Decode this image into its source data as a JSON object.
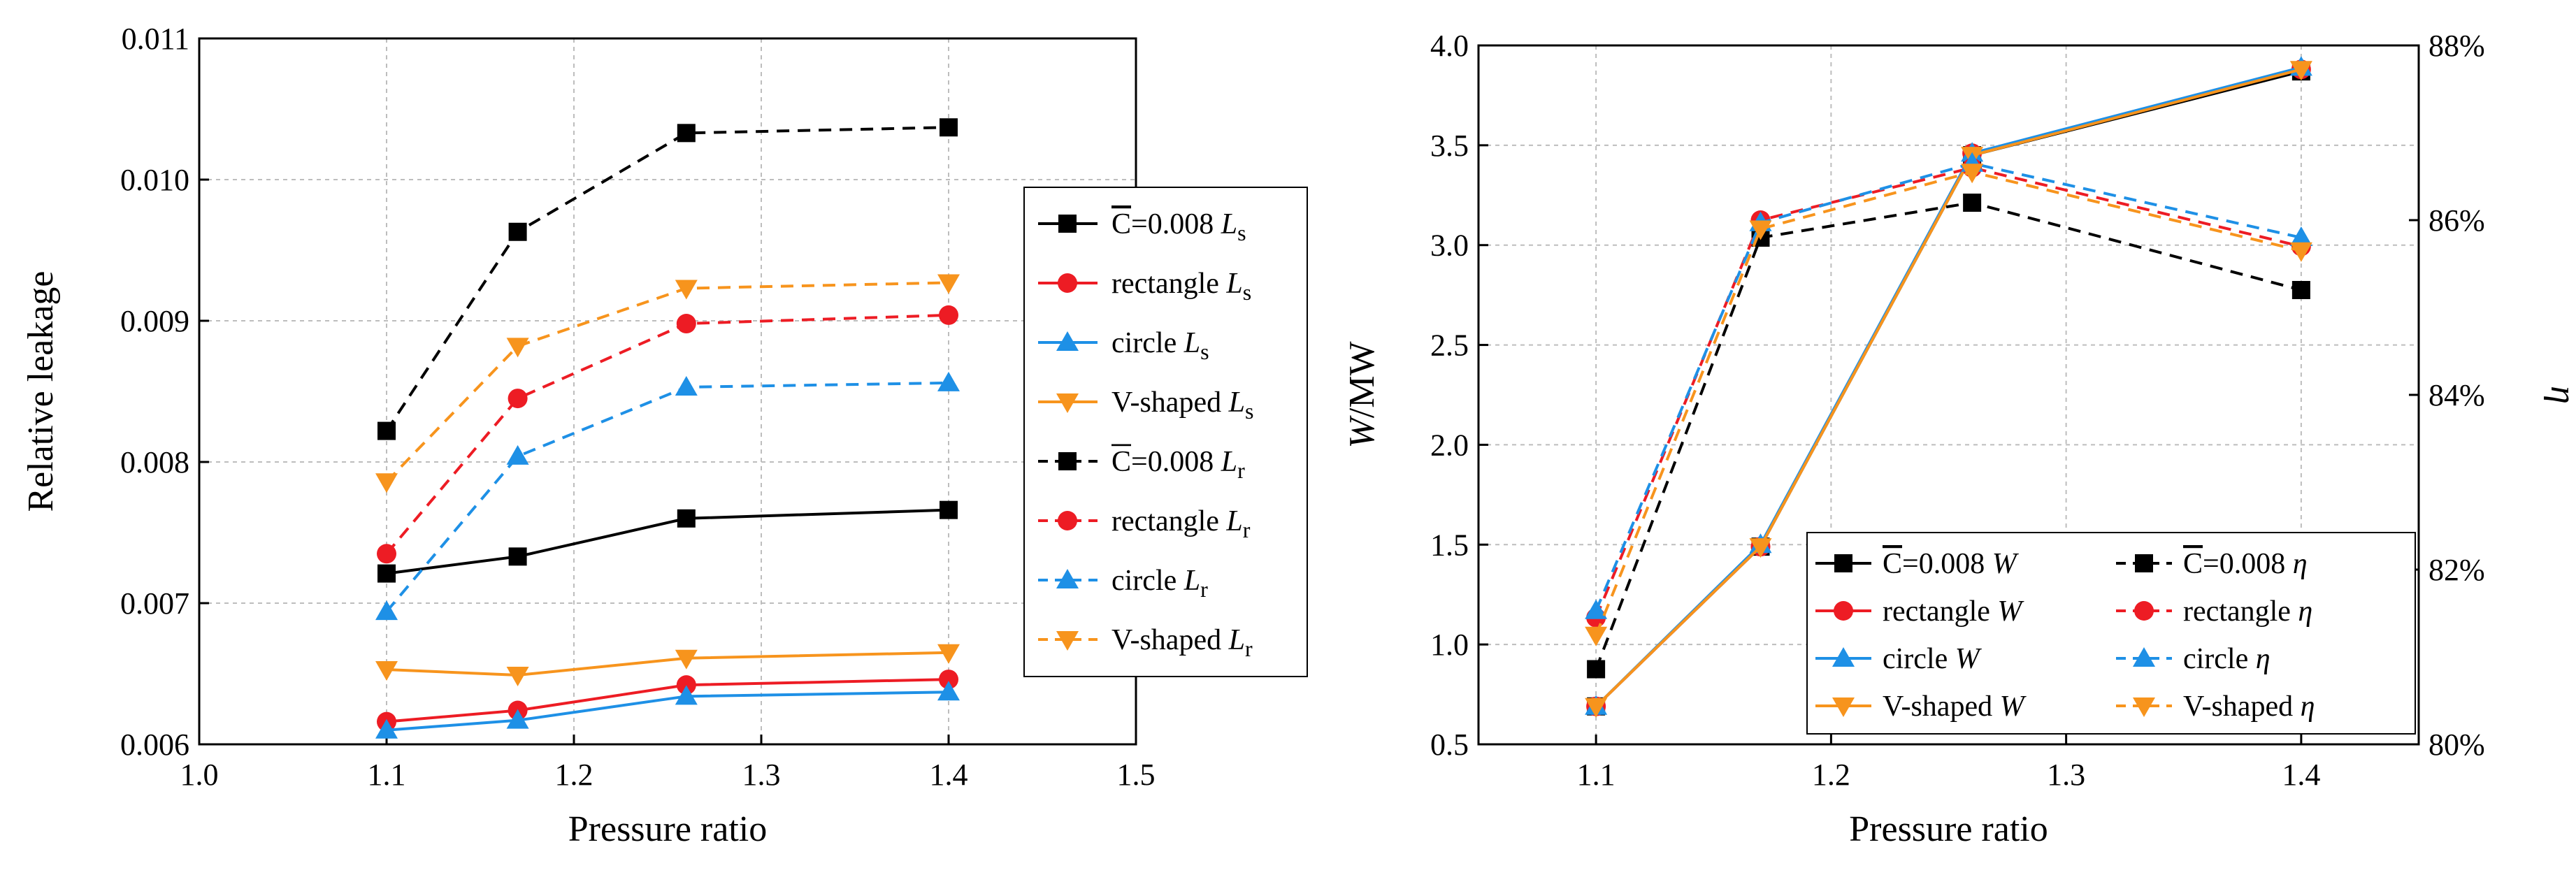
{
  "colors": {
    "baseline": "#000000",
    "rectangle": "#ed1c24",
    "circle": "#1e90e6",
    "vshaped": "#f7941d"
  },
  "chart_data": [
    {
      "type": "line",
      "xlabel": "Pressure ratio",
      "ylabel": "Relative leakage",
      "xlim": [
        1.0,
        1.5
      ],
      "ylim": [
        0.006,
        0.011
      ],
      "xticks": [
        1.0,
        1.1,
        1.2,
        1.3,
        1.4,
        1.5
      ],
      "xtick_labels": [
        "1.0",
        "1.1",
        "1.2",
        "1.3",
        "1.4",
        "1.5"
      ],
      "yticks": [
        0.006,
        0.007,
        0.008,
        0.009,
        0.01,
        0.011
      ],
      "ytick_labels": [
        "0.006",
        "0.007",
        "0.008",
        "0.009",
        "0.010",
        "0.011"
      ],
      "grid": true,
      "legend_position": "right-middle",
      "x": [
        1.1,
        1.17,
        1.26,
        1.4
      ],
      "series": [
        {
          "key": "base_Ls",
          "pre": "",
          "bar": "C",
          "post": "=0.008 ",
          "sym": "L",
          "sub": "s",
          "colorKey": "baseline",
          "marker": "square",
          "dashed": false,
          "values": [
            0.00721,
            0.00733,
            0.0076,
            0.00766
          ]
        },
        {
          "key": "rect_Ls",
          "pre": "rectangle ",
          "bar": "",
          "post": "",
          "sym": "L",
          "sub": "s",
          "colorKey": "rectangle",
          "marker": "circle",
          "dashed": false,
          "values": [
            0.00616,
            0.00624,
            0.00642,
            0.00646
          ]
        },
        {
          "key": "circ_Ls",
          "pre": "circle ",
          "bar": "",
          "post": "",
          "sym": "L",
          "sub": "s",
          "colorKey": "circle",
          "marker": "triangle-up",
          "dashed": false,
          "values": [
            0.0061,
            0.00617,
            0.00634,
            0.00637
          ]
        },
        {
          "key": "v_Ls",
          "pre": "V-shaped ",
          "bar": "",
          "post": "",
          "sym": "L",
          "sub": "s",
          "colorKey": "vshaped",
          "marker": "triangle-down",
          "dashed": false,
          "values": [
            0.00653,
            0.00649,
            0.00661,
            0.00665
          ]
        },
        {
          "key": "base_Lr",
          "pre": "",
          "bar": "C",
          "post": "=0.008 ",
          "sym": "L",
          "sub": "r",
          "colorKey": "baseline",
          "marker": "square",
          "dashed": true,
          "values": [
            0.00822,
            0.00963,
            0.01033,
            0.01037
          ]
        },
        {
          "key": "rect_Lr",
          "pre": "rectangle ",
          "bar": "",
          "post": "",
          "sym": "L",
          "sub": "r",
          "colorKey": "rectangle",
          "marker": "circle",
          "dashed": true,
          "values": [
            0.00735,
            0.00845,
            0.00898,
            0.00904
          ]
        },
        {
          "key": "circ_Lr",
          "pre": "circle ",
          "bar": "",
          "post": "",
          "sym": "L",
          "sub": "r",
          "colorKey": "circle",
          "marker": "triangle-up",
          "dashed": true,
          "values": [
            0.00694,
            0.00804,
            0.00853,
            0.00856
          ]
        },
        {
          "key": "v_Lr",
          "pre": "V-shaped ",
          "bar": "",
          "post": "",
          "sym": "L",
          "sub": "r",
          "colorKey": "vshaped",
          "marker": "triangle-down",
          "dashed": true,
          "values": [
            0.00786,
            0.00882,
            0.00923,
            0.00927
          ]
        }
      ]
    },
    {
      "type": "line",
      "xlabel": "Pressure ratio",
      "ylabel_sym": "W",
      "ylabel_unit": "/MW",
      "y2label": "η",
      "xlim": [
        1.05,
        1.45
      ],
      "ylim": [
        0.5,
        4.0
      ],
      "y2lim": [
        80,
        88
      ],
      "xticks": [
        1.1,
        1.2,
        1.3,
        1.4
      ],
      "xtick_labels": [
        "1.1",
        "1.2",
        "1.3",
        "1.4"
      ],
      "yticks": [
        0.5,
        1.0,
        1.5,
        2.0,
        2.5,
        3.0,
        3.5,
        4.0
      ],
      "ytick_labels": [
        "0.5",
        "1.0",
        "1.5",
        "2.0",
        "2.5",
        "3.0",
        "3.5",
        "4.0"
      ],
      "y2ticks": [
        80,
        82,
        84,
        86,
        88
      ],
      "y2tick_labels": [
        "80%",
        "82%",
        "84%",
        "86%",
        "88%"
      ],
      "grid": true,
      "legend_position": "bottom-right",
      "x": [
        1.1,
        1.17,
        1.26,
        1.4
      ],
      "series": [
        {
          "key": "base_W",
          "pre": "",
          "bar": "C",
          "post": "=0.008 ",
          "sym": "W",
          "sub": "",
          "colorKey": "baseline",
          "marker": "square",
          "dashed": false,
          "axis": "left",
          "values": [
            0.69,
            1.49,
            3.45,
            3.87
          ]
        },
        {
          "key": "rect_W",
          "pre": "rectangle ",
          "bar": "",
          "post": "",
          "sym": "W",
          "sub": "",
          "colorKey": "rectangle",
          "marker": "circle",
          "dashed": false,
          "axis": "left",
          "values": [
            0.69,
            1.49,
            3.46,
            3.88
          ]
        },
        {
          "key": "circ_W",
          "pre": "circle ",
          "bar": "",
          "post": "",
          "sym": "W",
          "sub": "",
          "colorKey": "circle",
          "marker": "triangle-up",
          "dashed": false,
          "axis": "left",
          "values": [
            0.69,
            1.5,
            3.46,
            3.89
          ]
        },
        {
          "key": "v_W",
          "pre": "V-shaped ",
          "bar": "",
          "post": "",
          "sym": "W",
          "sub": "",
          "colorKey": "vshaped",
          "marker": "triangle-down",
          "dashed": false,
          "axis": "left",
          "values": [
            0.69,
            1.49,
            3.45,
            3.88
          ]
        },
        {
          "key": "base_eta",
          "pre": "",
          "bar": "C",
          "post": "=0.008 ",
          "sym": "η",
          "sub": "",
          "colorKey": "baseline",
          "marker": "square",
          "dashed": true,
          "axis": "right",
          "values": [
            80.86,
            85.8,
            86.2,
            85.2
          ]
        },
        {
          "key": "rect_eta",
          "pre": "rectangle ",
          "bar": "",
          "post": "",
          "sym": "η",
          "sub": "",
          "colorKey": "rectangle",
          "marker": "circle",
          "dashed": true,
          "axis": "right",
          "values": [
            81.45,
            86.0,
            86.6,
            85.7
          ]
        },
        {
          "key": "circ_eta",
          "pre": "circle ",
          "bar": "",
          "post": "",
          "sym": "η",
          "sub": "",
          "colorKey": "circle",
          "marker": "triangle-up",
          "dashed": true,
          "axis": "right",
          "values": [
            81.53,
            85.97,
            86.65,
            85.8
          ]
        },
        {
          "key": "v_eta",
          "pre": "V-shaped ",
          "bar": "",
          "post": "",
          "sym": "η",
          "sub": "",
          "colorKey": "vshaped",
          "marker": "triangle-down",
          "dashed": true,
          "axis": "right",
          "values": [
            81.25,
            85.9,
            86.55,
            85.65
          ]
        }
      ]
    }
  ]
}
